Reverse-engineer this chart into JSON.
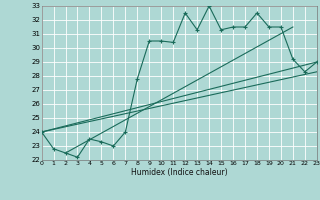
{
  "xlabel": "Humidex (Indice chaleur)",
  "bg_color": "#aed8d4",
  "grid_color": "#ffffff",
  "line_color": "#1a6b5a",
  "ylim": [
    22,
    33
  ],
  "xlim": [
    0,
    23
  ],
  "yticks": [
    22,
    23,
    24,
    25,
    26,
    27,
    28,
    29,
    30,
    31,
    32,
    33
  ],
  "xticks": [
    0,
    1,
    2,
    3,
    4,
    5,
    6,
    7,
    8,
    9,
    10,
    11,
    12,
    13,
    14,
    15,
    16,
    17,
    18,
    19,
    20,
    21,
    22,
    23
  ],
  "series1_x": [
    0,
    1,
    2,
    3,
    4,
    5,
    6,
    7,
    8,
    9,
    10,
    11,
    12,
    13,
    14,
    15,
    16,
    17,
    18,
    19,
    20,
    21,
    22,
    23
  ],
  "series1_y": [
    24.0,
    22.8,
    22.5,
    22.2,
    23.5,
    23.3,
    23.0,
    24.0,
    27.8,
    30.5,
    30.5,
    30.4,
    32.5,
    31.3,
    33.0,
    31.3,
    31.5,
    31.5,
    32.5,
    31.5,
    31.5,
    29.2,
    28.3,
    29.0
  ],
  "line1_x": [
    0,
    23
  ],
  "line1_y": [
    24.0,
    29.0
  ],
  "line2_x": [
    0,
    23
  ],
  "line2_y": [
    24.0,
    28.3
  ],
  "line3_x": [
    2,
    21
  ],
  "line3_y": [
    22.5,
    31.5
  ]
}
